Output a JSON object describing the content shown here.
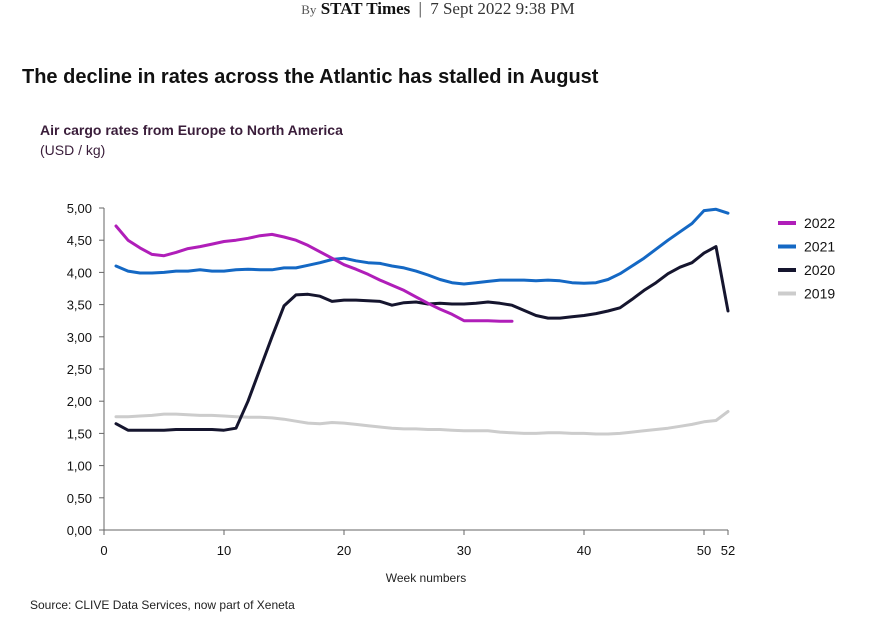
{
  "byline": {
    "by": "By",
    "publisher": "STAT Times",
    "separator": "|",
    "datetime": "7 Sept 2022 9:38 PM"
  },
  "headline": "The decline in rates across the Atlantic has stalled in August",
  "source": "Source: CLIVE Data Services, now part of Xeneta",
  "chart_data": {
    "type": "line",
    "title": "Air cargo rates from Europe to North America",
    "subtitle": "(USD / kg)",
    "xlabel": "Week numbers",
    "ylabel": "",
    "xlim": [
      0,
      52
    ],
    "ylim": [
      0,
      5
    ],
    "xticks": [
      0,
      10,
      20,
      30,
      40,
      50,
      52
    ],
    "yticks": [
      0,
      0.5,
      1.0,
      1.5,
      2.0,
      2.5,
      3.0,
      3.5,
      4.0,
      4.5,
      5.0
    ],
    "ytick_labels": [
      "0,00",
      "0,50",
      "1,00",
      "1,50",
      "2,00",
      "2,50",
      "3,00",
      "3,50",
      "4,00",
      "4,50",
      "5,00"
    ],
    "grid": false,
    "legend_position": "right",
    "series": [
      {
        "name": "2022",
        "color": "#b01eb9",
        "x": [
          1,
          2,
          3,
          4,
          5,
          6,
          7,
          8,
          9,
          10,
          11,
          12,
          13,
          14,
          15,
          16,
          17,
          18,
          19,
          20,
          21,
          22,
          23,
          24,
          25,
          26,
          27,
          28,
          29,
          30,
          31,
          32,
          33,
          34
        ],
        "values": [
          4.72,
          4.5,
          4.38,
          4.28,
          4.26,
          4.31,
          4.37,
          4.4,
          4.44,
          4.48,
          4.5,
          4.53,
          4.57,
          4.59,
          4.55,
          4.5,
          4.42,
          4.32,
          4.22,
          4.12,
          4.05,
          3.97,
          3.88,
          3.8,
          3.72,
          3.62,
          3.52,
          3.43,
          3.35,
          3.25,
          3.25,
          3.25,
          3.24,
          3.24
        ]
      },
      {
        "name": "2021",
        "color": "#1468c4",
        "x": [
          1,
          2,
          3,
          4,
          5,
          6,
          7,
          8,
          9,
          10,
          11,
          12,
          13,
          14,
          15,
          16,
          17,
          18,
          19,
          20,
          21,
          22,
          23,
          24,
          25,
          26,
          27,
          28,
          29,
          30,
          31,
          32,
          33,
          34,
          35,
          36,
          37,
          38,
          39,
          40,
          41,
          42,
          43,
          44,
          45,
          46,
          47,
          48,
          49,
          50,
          51,
          52
        ],
        "values": [
          4.1,
          4.02,
          3.99,
          3.99,
          4.0,
          4.02,
          4.02,
          4.04,
          4.02,
          4.02,
          4.04,
          4.05,
          4.04,
          4.04,
          4.07,
          4.07,
          4.11,
          4.15,
          4.2,
          4.22,
          4.18,
          4.15,
          4.14,
          4.1,
          4.07,
          4.02,
          3.96,
          3.89,
          3.84,
          3.82,
          3.84,
          3.86,
          3.88,
          3.88,
          3.88,
          3.87,
          3.88,
          3.87,
          3.84,
          3.83,
          3.84,
          3.89,
          3.98,
          4.1,
          4.22,
          4.36,
          4.5,
          4.63,
          4.76,
          4.96,
          4.98,
          4.92
        ]
      },
      {
        "name": "2020",
        "color": "#15152e",
        "x": [
          1,
          2,
          3,
          4,
          5,
          6,
          7,
          8,
          9,
          10,
          11,
          12,
          13,
          14,
          15,
          16,
          17,
          18,
          19,
          20,
          21,
          22,
          23,
          24,
          25,
          26,
          27,
          28,
          29,
          30,
          31,
          32,
          33,
          34,
          35,
          36,
          37,
          38,
          39,
          40,
          41,
          42,
          43,
          44,
          45,
          46,
          47,
          48,
          49,
          50,
          51,
          52
        ],
        "values": [
          1.65,
          1.55,
          1.55,
          1.55,
          1.55,
          1.56,
          1.56,
          1.56,
          1.56,
          1.55,
          1.58,
          2.0,
          2.5,
          3.0,
          3.48,
          3.65,
          3.66,
          3.63,
          3.55,
          3.57,
          3.57,
          3.56,
          3.55,
          3.49,
          3.53,
          3.54,
          3.51,
          3.52,
          3.51,
          3.51,
          3.52,
          3.54,
          3.52,
          3.49,
          3.41,
          3.33,
          3.29,
          3.29,
          3.31,
          3.33,
          3.36,
          3.4,
          3.45,
          3.58,
          3.72,
          3.84,
          3.98,
          4.08,
          4.15,
          4.3,
          4.4,
          3.4
        ]
      },
      {
        "name": "2019",
        "color": "#cccccc",
        "x": [
          1,
          2,
          3,
          4,
          5,
          6,
          7,
          8,
          9,
          10,
          11,
          12,
          13,
          14,
          15,
          16,
          17,
          18,
          19,
          20,
          21,
          22,
          23,
          24,
          25,
          26,
          27,
          28,
          29,
          30,
          31,
          32,
          33,
          34,
          35,
          36,
          37,
          38,
          39,
          40,
          41,
          42,
          43,
          44,
          45,
          46,
          47,
          48,
          49,
          50,
          51,
          52
        ],
        "values": [
          1.76,
          1.76,
          1.77,
          1.78,
          1.8,
          1.8,
          1.79,
          1.78,
          1.78,
          1.77,
          1.76,
          1.75,
          1.75,
          1.74,
          1.72,
          1.69,
          1.66,
          1.65,
          1.67,
          1.66,
          1.64,
          1.62,
          1.6,
          1.58,
          1.57,
          1.57,
          1.56,
          1.56,
          1.55,
          1.54,
          1.54,
          1.54,
          1.52,
          1.51,
          1.5,
          1.5,
          1.51,
          1.51,
          1.5,
          1.5,
          1.49,
          1.49,
          1.5,
          1.52,
          1.54,
          1.56,
          1.58,
          1.61,
          1.64,
          1.68,
          1.7,
          1.84
        ]
      }
    ]
  }
}
